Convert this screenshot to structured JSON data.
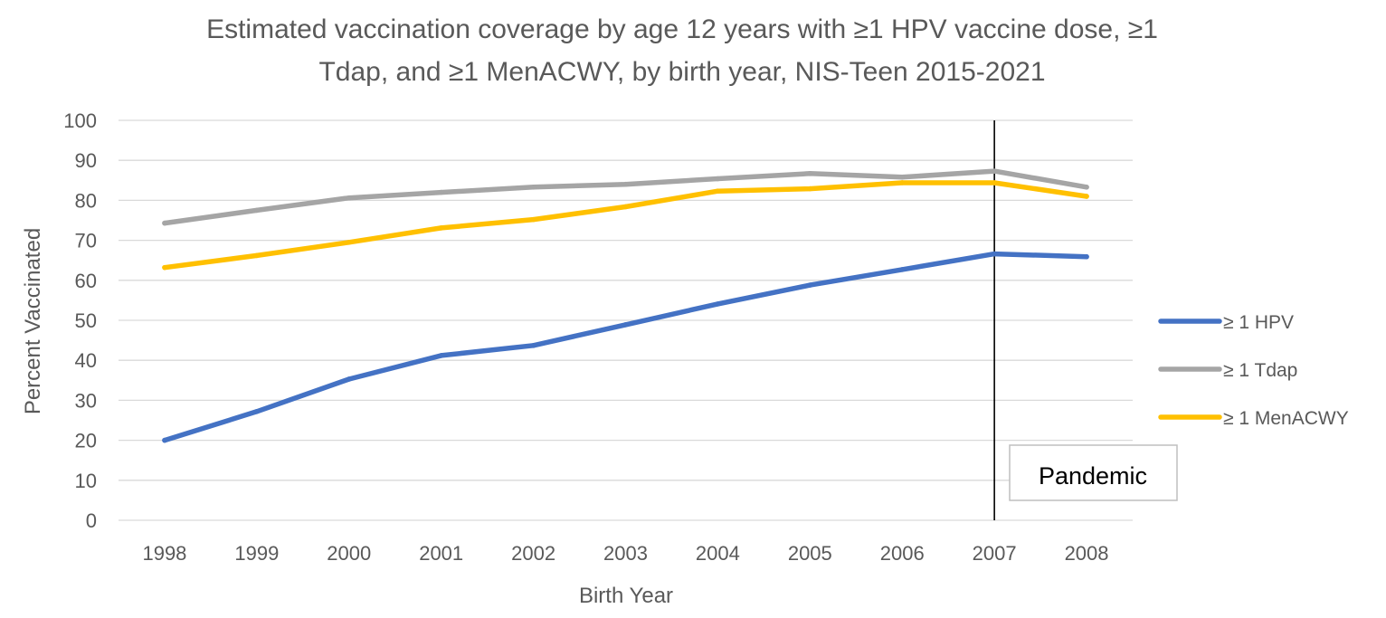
{
  "chart_data": {
    "type": "line",
    "title_lines": [
      "Estimated vaccination coverage by age 12 years with ≥1 HPV vaccine dose, ≥1",
      "Tdap, and ≥1 MenACWY, by birth year, NIS-Teen 2015-2021"
    ],
    "xlabel": "Birth Year",
    "ylabel": "Percent Vaccinated",
    "categories": [
      "1998",
      "1999",
      "2000",
      "2001",
      "2002",
      "2003",
      "2004",
      "2005",
      "2006",
      "2007",
      "2008"
    ],
    "ylim": [
      0,
      100
    ],
    "yticks": [
      "0",
      "10",
      "20",
      "30",
      "40",
      "50",
      "60",
      "70",
      "80",
      "90",
      "100"
    ],
    "grid": true,
    "legend_position": "right",
    "series": [
      {
        "name": "≥ 1 HPV",
        "color": "#4472C4",
        "values": [
          20,
          27.2,
          35.3,
          41.2,
          43.7,
          48.9,
          54.1,
          58.8,
          62.7,
          66.6,
          65.9
        ]
      },
      {
        "name": "≥ 1 Tdap",
        "color": "#A5A5A5",
        "values": [
          74.3,
          77.5,
          80.6,
          82,
          83.3,
          84,
          85.4,
          86.7,
          85.8,
          87.3,
          83.3
        ]
      },
      {
        "name": "≥ 1 MenACWY",
        "color": "#FFC000",
        "values": [
          63.2,
          66.2,
          69.5,
          73.1,
          75.2,
          78.4,
          82.3,
          82.9,
          84.4,
          84.4,
          81
        ]
      }
    ],
    "annotations": [
      {
        "type": "vline",
        "category": "2007",
        "label": "Pandemic",
        "color": "#000000"
      }
    ]
  }
}
